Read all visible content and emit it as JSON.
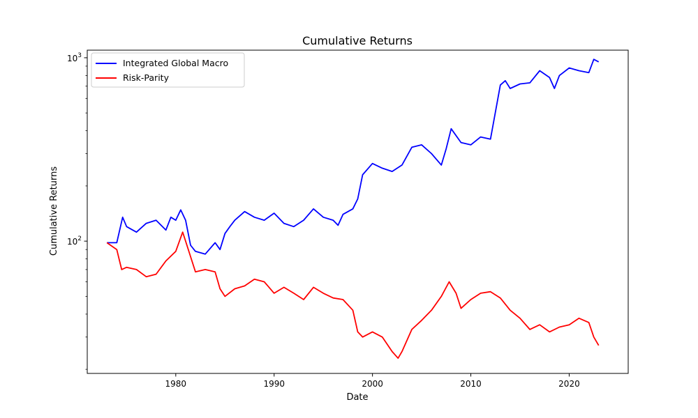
{
  "chart_data": {
    "type": "line",
    "title": "Cumulative Returns",
    "xlabel": "Date",
    "ylabel": "Cumulative Returns",
    "yscale": "log",
    "xlim": [
      1971,
      2026
    ],
    "ylim": [
      19,
      1100
    ],
    "x_ticks": [
      1980,
      1990,
      2000,
      2010,
      2020
    ],
    "y_major_ticks": [
      {
        "value": 100,
        "base": "10",
        "exp": "2"
      },
      {
        "value": 1000,
        "base": "10",
        "exp": "3"
      }
    ],
    "grid": false,
    "legend_position": "top-left",
    "series": [
      {
        "name": "Integrated Global Macro",
        "color": "#0000ff",
        "x": [
          1973.0,
          1974.0,
          1974.6,
          1975.0,
          1976.0,
          1977.0,
          1978.0,
          1979.0,
          1979.5,
          1980.0,
          1980.5,
          1981.0,
          1981.5,
          1982.0,
          1983.0,
          1984.0,
          1984.5,
          1985.0,
          1985.5,
          1986.0,
          1987.0,
          1988.0,
          1989.0,
          1990.0,
          1991.0,
          1992.0,
          1993.0,
          1994.0,
          1995.0,
          1996.0,
          1996.5,
          1997.0,
          1998.0,
          1998.5,
          1999.0,
          2000.0,
          2001.0,
          2002.0,
          2003.0,
          2004.0,
          2005.0,
          2006.0,
          2007.0,
          2007.5,
          2008.0,
          2009.0,
          2010.0,
          2011.0,
          2012.0,
          2013.0,
          2013.5,
          2014.0,
          2015.0,
          2016.0,
          2017.0,
          2018.0,
          2018.5,
          2019.0,
          2020.0,
          2021.0,
          2022.0,
          2022.5,
          2023.0
        ],
        "values": [
          98,
          98,
          135,
          120,
          112,
          125,
          130,
          115,
          135,
          130,
          148,
          130,
          95,
          88,
          85,
          98,
          90,
          110,
          120,
          130,
          145,
          135,
          130,
          142,
          125,
          120,
          130,
          150,
          135,
          130,
          122,
          140,
          150,
          170,
          230,
          265,
          250,
          240,
          260,
          325,
          335,
          300,
          260,
          320,
          410,
          345,
          335,
          370,
          360,
          710,
          750,
          680,
          720,
          730,
          850,
          780,
          680,
          800,
          880,
          850,
          830,
          980,
          950
        ]
      },
      {
        "name": "Risk-Parity",
        "color": "#ff0000",
        "x": [
          1973.0,
          1974.0,
          1974.5,
          1975.0,
          1976.0,
          1977.0,
          1978.0,
          1979.0,
          1980.0,
          1980.7,
          1981.0,
          1982.0,
          1983.0,
          1984.0,
          1984.5,
          1985.0,
          1986.0,
          1987.0,
          1988.0,
          1989.0,
          1990.0,
          1991.0,
          1992.0,
          1993.0,
          1994.0,
          1995.0,
          1996.0,
          1997.0,
          1998.0,
          1998.5,
          1999.0,
          2000.0,
          2001.0,
          2002.0,
          2002.6,
          2003.0,
          2004.0,
          2005.0,
          2006.0,
          2007.0,
          2007.8,
          2008.5,
          2009.0,
          2010.0,
          2011.0,
          2012.0,
          2013.0,
          2014.0,
          2015.0,
          2016.0,
          2017.0,
          2018.0,
          2019.0,
          2020.0,
          2021.0,
          2022.0,
          2022.5,
          2023.0
        ],
        "values": [
          98,
          90,
          70,
          72,
          70,
          64,
          66,
          78,
          88,
          112,
          100,
          68,
          70,
          68,
          55,
          50,
          55,
          57,
          62,
          60,
          52,
          56,
          52,
          48,
          56,
          52,
          49,
          48,
          42,
          32,
          30,
          32,
          30,
          25,
          23,
          25,
          33,
          37,
          42,
          50,
          60,
          52,
          43,
          48,
          52,
          53,
          49,
          42,
          38,
          33,
          35,
          32,
          34,
          35,
          38,
          36,
          30,
          27
        ]
      }
    ]
  }
}
